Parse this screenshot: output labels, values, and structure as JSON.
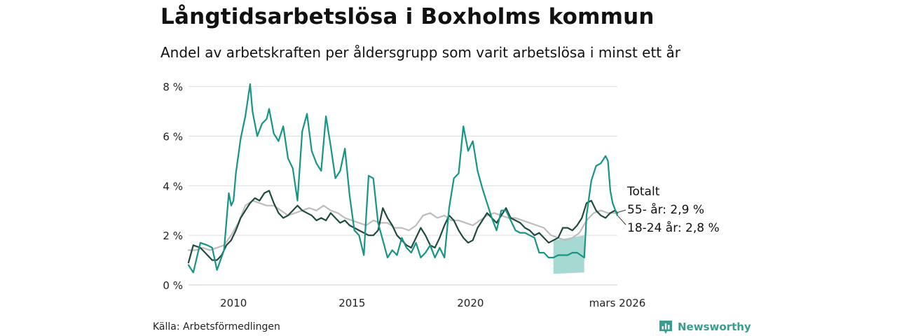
{
  "title": "Långtidsarbetslösa i Boxholms kommun",
  "subtitle": "Andel av arbetskraften per åldersgrupp som varit arbetslösa i minst ett år",
  "source": "Källa: Arbetsförmedlingen",
  "brand": "Newsworthy",
  "colors": {
    "total": "#bdbdbd",
    "age55": "#1f4a40",
    "age18_24": "#169585",
    "band": "#8fd0c5",
    "grid": "#dddddd",
    "brand": "#3a9b8f"
  },
  "chart_data": {
    "type": "line",
    "title": "Långtidsarbetslösa i Boxholms kommun",
    "xlabel": "",
    "ylabel": "",
    "ylim": [
      0,
      8.3
    ],
    "xlim": [
      2008.1,
      2026.2
    ],
    "y_ticks": [
      {
        "value": 0,
        "label": "0 %"
      },
      {
        "value": 2,
        "label": "2 %"
      },
      {
        "value": 4,
        "label": "4 %"
      },
      {
        "value": 6,
        "label": "6 %"
      },
      {
        "value": 8,
        "label": "8 %"
      }
    ],
    "x_ticks": [
      {
        "value": 2010,
        "label": "2010"
      },
      {
        "value": 2015,
        "label": "2015"
      },
      {
        "value": 2020,
        "label": "2020"
      },
      {
        "value": 2026.2,
        "label": "mars 2026"
      }
    ],
    "band": {
      "name": "18-24 år osäkerhet",
      "x": [
        2023.5,
        2024.8
      ],
      "lower": [
        0.45,
        0.5
      ],
      "upper": [
        1.8,
        2.0
      ]
    },
    "series": [
      {
        "name": "Totalt",
        "label": "Totalt",
        "x": [
          2008.1,
          2008.4,
          2008.7,
          2009.0,
          2009.3,
          2009.6,
          2009.9,
          2010.2,
          2010.5,
          2010.8,
          2011.1,
          2011.4,
          2011.7,
          2012.0,
          2012.3,
          2012.6,
          2012.9,
          2013.2,
          2013.5,
          2013.8,
          2014.1,
          2014.4,
          2014.7,
          2015.0,
          2015.3,
          2015.6,
          2015.9,
          2016.2,
          2016.5,
          2016.8,
          2017.1,
          2017.4,
          2017.7,
          2018.0,
          2018.3,
          2018.6,
          2018.9,
          2019.2,
          2019.5,
          2019.8,
          2020.1,
          2020.4,
          2020.7,
          2021.0,
          2021.3,
          2021.6,
          2021.9,
          2022.2,
          2022.5,
          2022.8,
          2023.1,
          2023.4,
          2023.7,
          2024.0,
          2024.3,
          2024.6,
          2024.9,
          2025.2,
          2025.5,
          2025.8,
          2026.0,
          2026.2
        ],
        "values": [
          1.4,
          1.4,
          1.5,
          1.4,
          1.5,
          1.6,
          2.0,
          2.5,
          3.2,
          3.4,
          3.3,
          3.2,
          3.2,
          3.0,
          2.8,
          2.9,
          3.0,
          3.1,
          3.0,
          3.2,
          3.0,
          2.9,
          2.7,
          2.6,
          2.5,
          2.4,
          2.6,
          2.5,
          2.5,
          2.3,
          2.3,
          2.2,
          2.4,
          2.8,
          2.9,
          2.7,
          2.8,
          2.6,
          2.6,
          2.5,
          2.4,
          2.6,
          2.8,
          2.9,
          2.8,
          2.7,
          2.7,
          2.6,
          2.5,
          2.4,
          2.3,
          2.0,
          1.9,
          1.8,
          1.9,
          2.1,
          2.6,
          2.9,
          3.0,
          2.9,
          2.9,
          2.9
        ]
      },
      {
        "name": "55- år",
        "label": "55- år: 2,9 %",
        "x": [
          2008.1,
          2008.3,
          2008.6,
          2008.9,
          2009.1,
          2009.3,
          2009.5,
          2009.7,
          2009.9,
          2010.1,
          2010.3,
          2010.5,
          2010.7,
          2010.9,
          2011.1,
          2011.3,
          2011.5,
          2011.7,
          2011.9,
          2012.1,
          2012.3,
          2012.5,
          2012.7,
          2012.9,
          2013.1,
          2013.3,
          2013.5,
          2013.7,
          2013.9,
          2014.1,
          2014.3,
          2014.5,
          2014.7,
          2014.9,
          2015.1,
          2015.3,
          2015.5,
          2015.7,
          2015.9,
          2016.1,
          2016.3,
          2016.5,
          2016.7,
          2016.9,
          2017.1,
          2017.3,
          2017.5,
          2017.7,
          2017.9,
          2018.1,
          2018.3,
          2018.5,
          2018.7,
          2018.9,
          2019.1,
          2019.3,
          2019.5,
          2019.7,
          2019.9,
          2020.1,
          2020.3,
          2020.5,
          2020.7,
          2020.9,
          2021.1,
          2021.3,
          2021.5,
          2021.7,
          2021.9,
          2022.1,
          2022.3,
          2022.5,
          2022.7,
          2022.9,
          2023.1,
          2023.3,
          2023.5,
          2023.7,
          2023.9,
          2024.1,
          2024.3,
          2024.5,
          2024.7,
          2024.9,
          2025.1,
          2025.3,
          2025.5,
          2025.7,
          2025.9,
          2026.1,
          2026.2
        ],
        "values": [
          0.9,
          1.6,
          1.5,
          1.2,
          1.0,
          1.0,
          1.2,
          1.6,
          1.8,
          2.2,
          2.7,
          3.0,
          3.3,
          3.5,
          3.4,
          3.7,
          3.8,
          3.3,
          2.9,
          2.7,
          2.8,
          3.0,
          3.2,
          3.0,
          2.9,
          2.8,
          2.6,
          2.7,
          2.6,
          2.9,
          2.7,
          2.5,
          2.6,
          2.4,
          2.3,
          2.2,
          2.1,
          2.0,
          2.0,
          2.2,
          3.1,
          2.7,
          2.4,
          2.0,
          1.8,
          1.6,
          1.5,
          1.9,
          2.3,
          2.0,
          1.6,
          1.5,
          1.9,
          2.4,
          2.8,
          2.6,
          2.2,
          1.9,
          1.7,
          1.8,
          2.3,
          2.6,
          2.9,
          2.7,
          2.5,
          2.8,
          3.1,
          2.7,
          2.6,
          2.5,
          2.3,
          2.2,
          2.0,
          2.1,
          1.9,
          1.7,
          1.8,
          1.9,
          2.3,
          2.3,
          2.2,
          2.4,
          2.7,
          3.3,
          3.4,
          3.0,
          2.8,
          2.7,
          2.9,
          3.0,
          2.9
        ]
      },
      {
        "name": "18-24 år",
        "label": "18-24 år: 2,8 %",
        "x": [
          2008.1,
          2008.3,
          2008.6,
          2008.9,
          2009.1,
          2009.3,
          2009.6,
          2009.8,
          2009.9,
          2010.0,
          2010.1,
          2010.3,
          2010.5,
          2010.7,
          2010.8,
          2011.0,
          2011.2,
          2011.4,
          2011.5,
          2011.7,
          2011.9,
          2012.1,
          2012.3,
          2012.5,
          2012.7,
          2012.9,
          2013.1,
          2013.3,
          2013.5,
          2013.7,
          2013.9,
          2014.1,
          2014.3,
          2014.5,
          2014.7,
          2014.9,
          2015.1,
          2015.3,
          2015.5,
          2015.7,
          2015.9,
          2016.1,
          2016.3,
          2016.5,
          2016.7,
          2016.9,
          2017.1,
          2017.3,
          2017.5,
          2017.7,
          2017.9,
          2018.1,
          2018.3,
          2018.5,
          2018.7,
          2018.9,
          2019.1,
          2019.3,
          2019.5,
          2019.7,
          2019.9,
          2020.1,
          2020.3,
          2020.5,
          2020.7,
          2020.9,
          2021.1,
          2021.3,
          2021.5,
          2021.7,
          2021.9,
          2022.1,
          2022.3,
          2022.5,
          2022.7,
          2022.9,
          2023.1,
          2023.3,
          2023.5,
          2023.7,
          2023.9,
          2024.1,
          2024.3,
          2024.5,
          2024.8,
          2024.9,
          2025.1,
          2025.3,
          2025.5,
          2025.7,
          2025.8,
          2025.9,
          2026.0,
          2026.2
        ],
        "values": [
          0.8,
          0.5,
          1.7,
          1.6,
          1.5,
          0.6,
          1.4,
          3.7,
          3.2,
          3.4,
          4.5,
          5.9,
          6.8,
          8.1,
          7.0,
          6.0,
          6.5,
          6.7,
          7.1,
          6.1,
          5.8,
          6.4,
          5.1,
          4.7,
          3.4,
          6.2,
          6.9,
          5.4,
          4.9,
          4.6,
          6.8,
          5.6,
          4.3,
          4.6,
          5.5,
          3.6,
          2.2,
          2.0,
          1.2,
          4.4,
          4.3,
          2.5,
          1.8,
          1.1,
          1.4,
          1.2,
          1.9,
          1.5,
          1.3,
          1.7,
          1.1,
          1.3,
          1.6,
          1.1,
          1.5,
          1.1,
          3.1,
          4.3,
          4.5,
          6.4,
          5.4,
          5.8,
          4.6,
          3.9,
          3.3,
          2.7,
          2.2,
          3.0,
          3.0,
          2.6,
          2.2,
          2.1,
          2.1,
          2.0,
          1.9,
          1.3,
          1.3,
          1.1,
          1.1,
          1.2,
          1.2,
          1.2,
          1.3,
          1.3,
          1.1,
          2.8,
          4.2,
          4.8,
          4.9,
          5.2,
          5.0,
          3.8,
          3.3,
          2.8
        ]
      }
    ]
  }
}
